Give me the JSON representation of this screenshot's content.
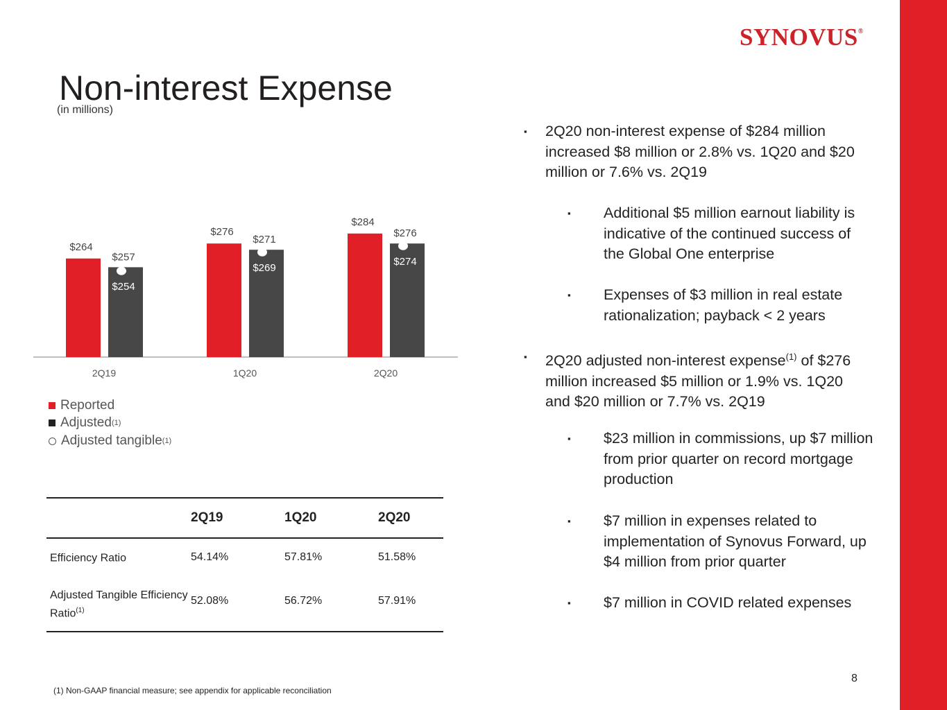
{
  "brand": {
    "name": "SYNOVUS",
    "reg_mark": "®",
    "accent": "#e11f26",
    "adjusted_color": "#474747"
  },
  "title": "Non-interest Expense",
  "subtitle": "(in millions)",
  "chart_data": {
    "type": "bar",
    "categories": [
      "2Q19",
      "1Q20",
      "2Q20"
    ],
    "series": [
      {
        "name": "Reported",
        "values": [
          264,
          276,
          284
        ],
        "labels": [
          "$264",
          "$276",
          "$284"
        ]
      },
      {
        "name": "Adjusted(1)",
        "values": [
          257,
          271,
          276
        ],
        "labels": [
          "$257",
          "$271",
          "$276"
        ]
      },
      {
        "name": "Adjusted tangible(1)",
        "values": [
          254,
          269,
          274
        ],
        "labels": [
          "$254",
          "$269",
          "$274"
        ],
        "marker": "circle"
      }
    ],
    "ylim": [
      0,
      300
    ],
    "grid": false,
    "legend_position": "bottom-left"
  },
  "legend": {
    "reported": "Reported",
    "adjusted": "Adjusted",
    "adjusted_sup": "(1)",
    "tangible": "Adjusted tangible",
    "tangible_sup": "(1)"
  },
  "table": {
    "headers": [
      "",
      "2Q19",
      "1Q20",
      "2Q20"
    ],
    "rows": [
      {
        "label": "Efficiency Ratio",
        "label_sup": "",
        "values": [
          "54.14%",
          "57.81%",
          "51.58%"
        ]
      },
      {
        "label": "Adjusted Tangible Efficiency Ratio",
        "label_sup": "(1)",
        "values": [
          "52.08%",
          "56.72%",
          "57.91%"
        ]
      }
    ]
  },
  "bullets": {
    "mark": "▪",
    "b1": "2Q20 non-interest expense of $284 million increased $8 million or 2.8% vs. 1Q20 and $20 million or 7.6% vs. 2Q19",
    "b1a": "Additional $5 million earnout liability is indicative of the continued success of the Global One enterprise",
    "b1b": "Expenses of $3 million in real estate rationalization; payback < 2 years",
    "b2_pre": "2Q20 adjusted non-interest expense",
    "b2_sup": "(1)",
    "b2_post": " of $276 million increased $5 million or 1.9% vs. 1Q20 and $20 million or 7.7% vs. 2Q19",
    "b2a": "$23 million in commissions, up $7 million from prior quarter on record mortgage production",
    "b2b": "$7 million in expenses related to implementation of Synovus Forward, up $4 million from prior quarter",
    "b2c": "$7 million in COVID related expenses"
  },
  "page_number": "8",
  "footnote": "(1) Non-GAAP financial measure; see appendix for applicable reconciliation"
}
